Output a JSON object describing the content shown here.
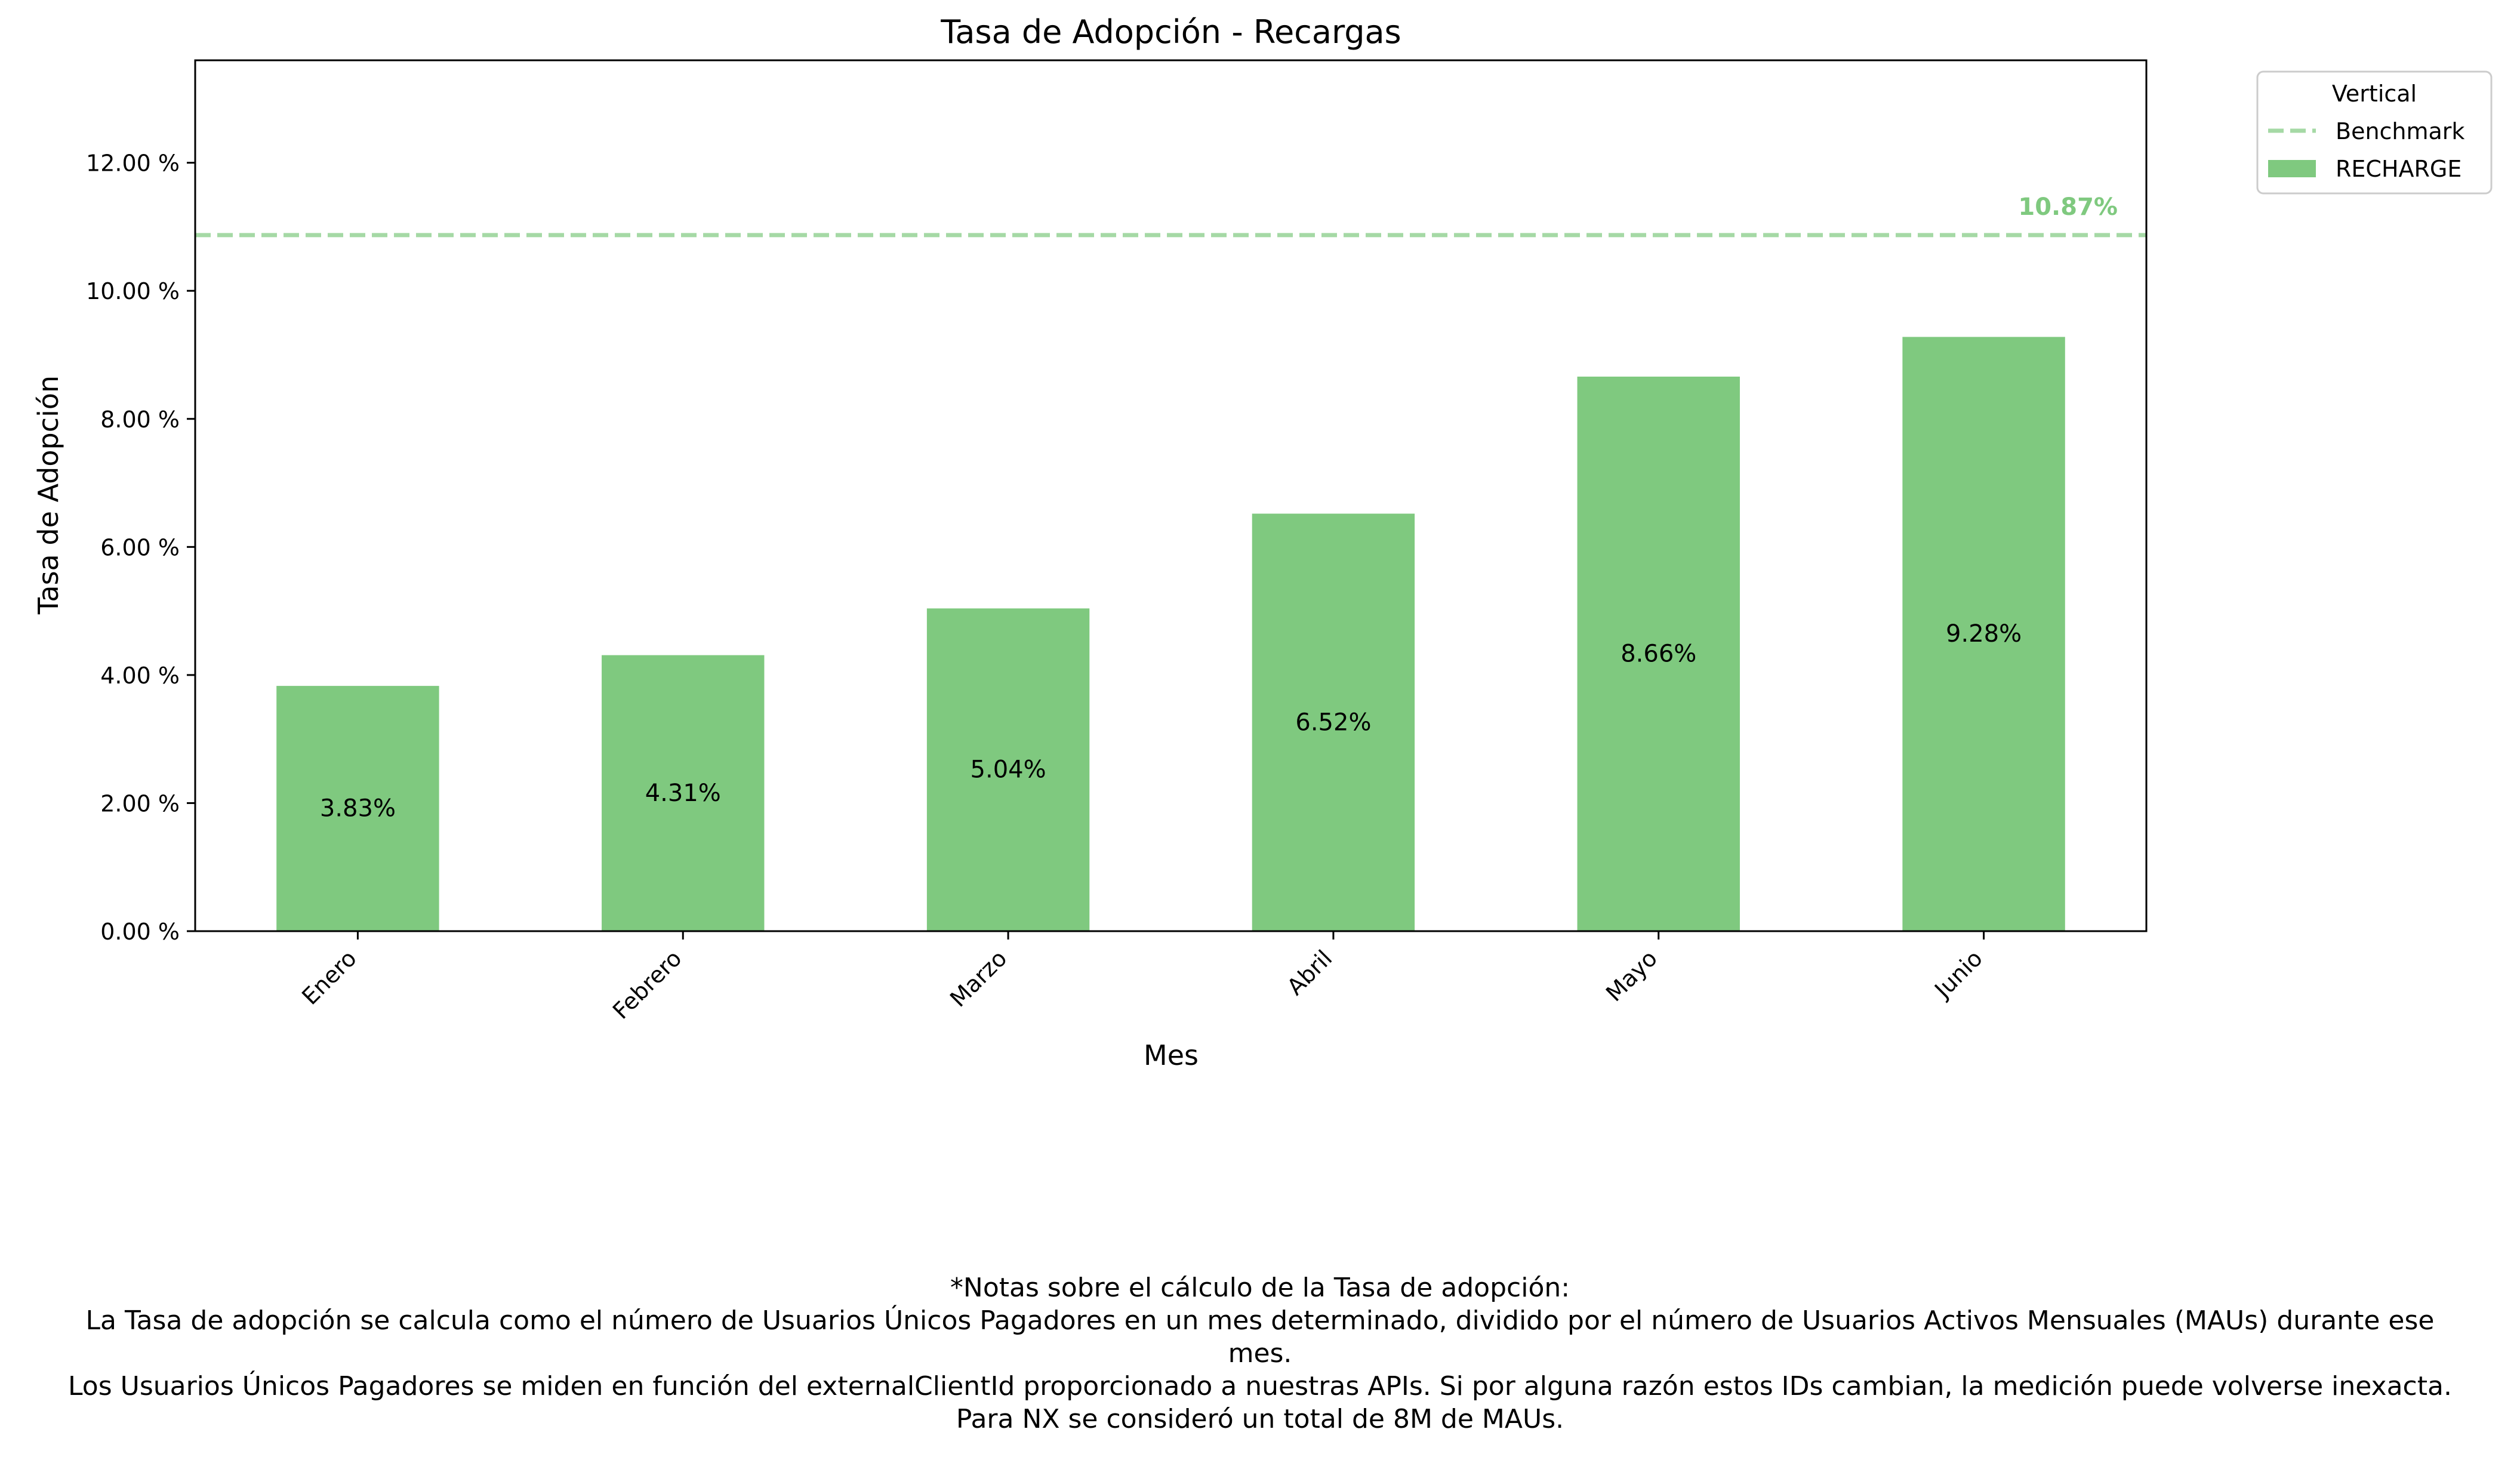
{
  "chart_data": {
    "type": "bar",
    "title": "Tasa de Adopción - Recargas",
    "xlabel": "Mes",
    "ylabel": "Tasa de Adopción",
    "categories": [
      "Enero",
      "Febrero",
      "Marzo",
      "Abril",
      "Mayo",
      "Junio"
    ],
    "series": [
      {
        "name": "RECHARGE",
        "values": [
          3.83,
          4.31,
          5.04,
          6.52,
          8.66,
          9.28
        ],
        "color": "#7fc97f"
      }
    ],
    "data_labels": [
      "3.83%",
      "4.31%",
      "5.04%",
      "6.52%",
      "8.66%",
      "9.28%"
    ],
    "benchmark": {
      "name": "Benchmark",
      "value": 10.87,
      "label": "10.87%",
      "color": "#7fc97f"
    },
    "ylim": [
      0,
      13.6
    ],
    "yticks": [
      0,
      2,
      4,
      6,
      8,
      10,
      12
    ],
    "ytick_labels": [
      "0.00 %",
      "2.00 %",
      "4.00 %",
      "6.00 %",
      "8.00 %",
      "10.00 %",
      "12.00 %"
    ],
    "legend": {
      "title": "Vertical",
      "position": "outside-top-right",
      "entries": [
        "Benchmark",
        "RECHARGE"
      ]
    },
    "grid": false
  },
  "notes": {
    "heading": "*Notas sobre el cálculo de la Tasa de adopción:",
    "line1": "La Tasa de adopción se calcula como el número de Usuarios Únicos Pagadores en un mes determinado, dividido por el número de Usuarios Activos Mensuales (MAUs) durante ese",
    "line1b": "mes.",
    "line2": "Los Usuarios Únicos Pagadores se miden en función del externalClientId proporcionado a nuestras APIs. Si por alguna razón estos IDs cambian, la medición puede volverse inexacta.",
    "line3": "Para NX se consideró un total de 8M de MAUs."
  }
}
